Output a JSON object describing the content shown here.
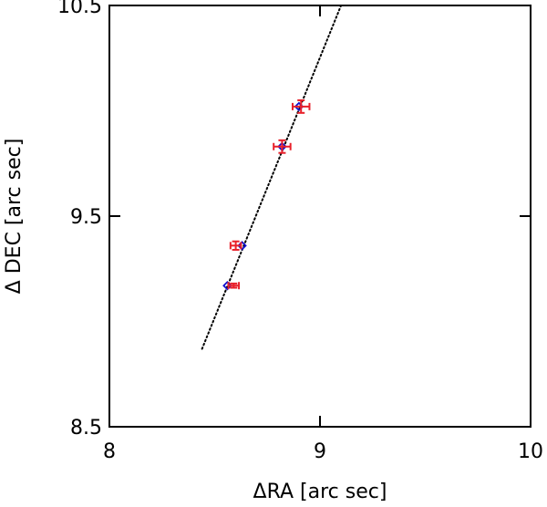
{
  "chart_data": {
    "type": "scatter",
    "xlabel": "ΔRA [arc sec]",
    "ylabel": "Δ DEC [arc sec]",
    "xlim": [
      8,
      10
    ],
    "ylim": [
      8.5,
      10.5
    ],
    "xticks": [
      8,
      9,
      10
    ],
    "yticks": [
      8.5,
      9.5,
      10.5
    ],
    "xtick_labels": [
      "8",
      "9",
      "10"
    ],
    "ytick_labels": [
      "8.5",
      "9.5",
      "10.5"
    ],
    "grid": false,
    "series": [
      {
        "marker": "plus-with-errorbars",
        "color": "#e8202a",
        "points": [
          {
            "x": 8.91,
            "y": 10.02,
            "xerr": 0.04,
            "yerr": 0.03
          },
          {
            "x": 8.82,
            "y": 9.83,
            "xerr": 0.04,
            "yerr": 0.03
          },
          {
            "x": 8.6,
            "y": 9.36,
            "xerr": 0.025,
            "yerr": 0.02
          },
          {
            "x": 8.59,
            "y": 9.17,
            "xerr": 0.025,
            "yerr": 0.01
          }
        ]
      },
      {
        "marker": "diamond",
        "color": "#1010d0",
        "points": [
          {
            "x": 8.9,
            "y": 10.02
          },
          {
            "x": 8.82,
            "y": 9.83
          },
          {
            "x": 8.63,
            "y": 9.36
          },
          {
            "x": 8.56,
            "y": 9.17
          }
        ]
      }
    ],
    "fit_line": {
      "style": "dotted",
      "color": "#000000",
      "x": [
        8.44,
        9.1
      ],
      "y": [
        8.87,
        10.5
      ]
    }
  }
}
